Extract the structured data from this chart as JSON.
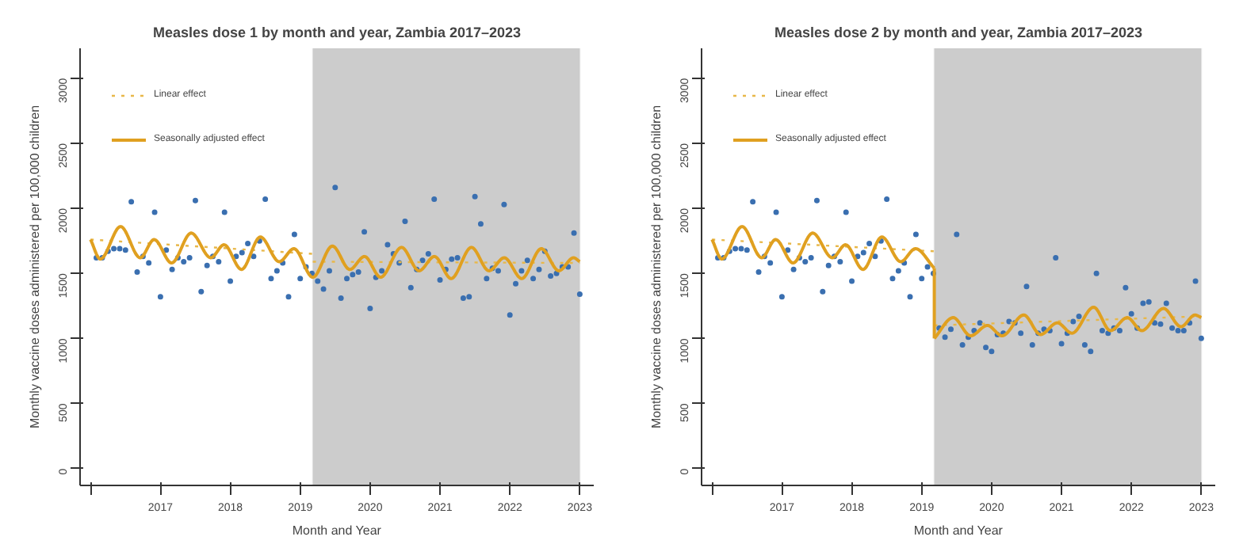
{
  "chart_data": [
    {
      "type": "scatter",
      "title": "Measles dose 1 by month and year, Zambia 2017–2023",
      "xlabel": "Month and Year",
      "ylabel": "Monthly vaccine doses administered per 100,000 children",
      "xlim": [
        2015.85,
        2023.2
      ],
      "ylim": [
        -130,
        3230
      ],
      "xticks": [
        {
          "value": 2016,
          "label": null
        },
        2017,
        2018,
        2019,
        2020,
        2021,
        2022,
        2023
      ],
      "yticks": [
        0,
        500,
        1000,
        1500,
        2000,
        2500,
        3000
      ],
      "grid": false,
      "legend": "top left",
      "bands": [
        {
          "axis": "x",
          "from": 2019.18,
          "to": 2023,
          "color": "#cccccc"
        }
      ],
      "x": [
        2016.083,
        2016.167,
        2016.25,
        2016.333,
        2016.417,
        2016.5,
        2016.583,
        2016.667,
        2016.75,
        2016.833,
        2016.917,
        2017,
        2017.083,
        2017.167,
        2017.25,
        2017.333,
        2017.417,
        2017.5,
        2017.583,
        2017.667,
        2017.75,
        2017.833,
        2017.917,
        2018,
        2018.083,
        2018.167,
        2018.25,
        2018.333,
        2018.417,
        2018.5,
        2018.583,
        2018.667,
        2018.75,
        2018.833,
        2018.917,
        2019,
        2019.083,
        2019.167,
        2019.25,
        2019.333,
        2019.417,
        2019.5,
        2019.583,
        2019.667,
        2019.75,
        2019.833,
        2019.917,
        2020,
        2020.083,
        2020.167,
        2020.25,
        2020.333,
        2020.417,
        2020.5,
        2020.583,
        2020.667,
        2020.75,
        2020.833,
        2020.917,
        2021,
        2021.083,
        2021.167,
        2021.25,
        2021.333,
        2021.417,
        2021.5,
        2021.583,
        2021.667,
        2021.75,
        2021.833,
        2021.917,
        2022,
        2022.083,
        2022.167,
        2022.25,
        2022.333,
        2022.417,
        2022.5,
        2022.583,
        2022.667,
        2022.75,
        2022.833,
        2022.917,
        2023
      ],
      "series": [
        {
          "marker": "circle",
          "color": "#3a6fb0",
          "values": [
            1620,
            1620,
            1670,
            1690,
            1690,
            1680,
            2050,
            1510,
            1630,
            1580,
            1970,
            1320,
            1680,
            1530,
            1620,
            1590,
            1620,
            2060,
            1360,
            1560,
            1630,
            1590,
            1970,
            1440,
            1630,
            1660,
            1730,
            1630,
            1750,
            2070,
            1460,
            1520,
            1580,
            1320,
            1800,
            1460,
            1550,
            1500,
            1440,
            1380,
            1520,
            2160,
            1310,
            1460,
            1490,
            1510,
            1820,
            1230,
            1470,
            1520,
            1720,
            1650,
            1580,
            1900,
            1390,
            1530,
            1600,
            1650,
            2070,
            1450,
            1530,
            1610,
            1620,
            1310,
            1320,
            2090,
            1880,
            1460,
            1540,
            1520,
            2030,
            1180,
            1420,
            1520,
            1600,
            1460,
            1530,
            1670,
            1480,
            1500,
            1550,
            1550,
            1810,
            1340
          ]
        },
        {
          "type": "line",
          "name": "Linear effect",
          "color": "#e8b84a",
          "line_style": "dotted",
          "x": [
            2016,
            2019.18
          ],
          "values": [
            1760,
            1650
          ]
        },
        {
          "type": "line",
          "color": "#e8b84a",
          "line_style": "dotted",
          "x": [
            2019.18,
            2023
          ],
          "values": [
            1590,
            1580
          ]
        },
        {
          "type": "line",
          "name": "Seasonally adjusted effect",
          "color": "#e0a020",
          "line_style": "solid",
          "x": [
            2016,
            2016.14,
            2016.43,
            2016.71,
            2016.91,
            2017.16,
            2017.44,
            2017.72,
            2017.91,
            2018.16,
            2018.43,
            2018.7,
            2018.91,
            2019.18,
            2019.46,
            2019.71,
            2019.92,
            2020.15,
            2020.45,
            2020.7,
            2020.92,
            2021.16,
            2021.45,
            2021.7,
            2021.92,
            2022.17,
            2022.45,
            2022.7,
            2022.91,
            2023
          ],
          "values": [
            1760,
            1610,
            1860,
            1620,
            1760,
            1580,
            1810,
            1620,
            1720,
            1530,
            1780,
            1590,
            1690,
            1470,
            1710,
            1530,
            1630,
            1470,
            1700,
            1520,
            1630,
            1460,
            1700,
            1520,
            1620,
            1460,
            1690,
            1520,
            1620,
            1590
          ]
        }
      ]
    },
    {
      "type": "scatter",
      "title": "Measles dose 2 by month and year, Zambia 2017–2023",
      "xlabel": "Month and Year",
      "ylabel": "Monthly vaccine doses administered per 100,000 children",
      "xlim": [
        2015.85,
        2023.2
      ],
      "ylim": [
        -130,
        3230
      ],
      "xticks": [
        {
          "value": 2016,
          "label": null
        },
        2017,
        2018,
        2019,
        2020,
        2021,
        2022,
        2023
      ],
      "yticks": [
        0,
        500,
        1000,
        1500,
        2000,
        2500,
        3000
      ],
      "grid": false,
      "legend": "top left",
      "bands": [
        {
          "axis": "x",
          "from": 2019.18,
          "to": 2023,
          "color": "#cccccc"
        }
      ],
      "x": [
        2016.083,
        2016.167,
        2016.25,
        2016.333,
        2016.417,
        2016.5,
        2016.583,
        2016.667,
        2016.75,
        2016.833,
        2016.917,
        2017,
        2017.083,
        2017.167,
        2017.25,
        2017.333,
        2017.417,
        2017.5,
        2017.583,
        2017.667,
        2017.75,
        2017.833,
        2017.917,
        2018,
        2018.083,
        2018.167,
        2018.25,
        2018.333,
        2018.417,
        2018.5,
        2018.583,
        2018.667,
        2018.75,
        2018.833,
        2018.917,
        2019,
        2019.083,
        2019.167,
        2019.25,
        2019.333,
        2019.417,
        2019.5,
        2019.583,
        2019.667,
        2019.75,
        2019.833,
        2019.917,
        2020,
        2020.083,
        2020.167,
        2020.25,
        2020.333,
        2020.417,
        2020.5,
        2020.583,
        2020.667,
        2020.75,
        2020.833,
        2020.917,
        2021,
        2021.083,
        2021.167,
        2021.25,
        2021.333,
        2021.417,
        2021.5,
        2021.583,
        2021.667,
        2021.75,
        2021.833,
        2021.917,
        2022,
        2022.083,
        2022.167,
        2022.25,
        2022.333,
        2022.417,
        2022.5,
        2022.583,
        2022.667,
        2022.75,
        2022.833,
        2022.917,
        2023
      ],
      "series": [
        {
          "marker": "circle",
          "color": "#3a6fb0",
          "values": [
            1620,
            1620,
            1670,
            1690,
            1690,
            1680,
            2050,
            1510,
            1630,
            1580,
            1970,
            1320,
            1680,
            1530,
            1620,
            1590,
            1620,
            2060,
            1360,
            1560,
            1630,
            1590,
            1970,
            1440,
            1630,
            1660,
            1730,
            1630,
            1750,
            2070,
            1460,
            1520,
            1580,
            1320,
            1800,
            1460,
            1550,
            1500,
            1080,
            1010,
            1070,
            1800,
            950,
            1010,
            1060,
            1120,
            930,
            900,
            1030,
            1040,
            1130,
            1120,
            1040,
            1400,
            950,
            1040,
            1070,
            1060,
            1620,
            960,
            1040,
            1130,
            1170,
            950,
            900,
            1500,
            1060,
            1040,
            1080,
            1060,
            1390,
            1190,
            1080,
            1270,
            1280,
            1120,
            1110,
            1270,
            1080,
            1060,
            1060,
            1120,
            1440,
            1000
          ]
        },
        {
          "type": "line",
          "name": "Linear effect",
          "color": "#e8b84a",
          "line_style": "dotted",
          "x": [
            2016,
            2019.18
          ],
          "values": [
            1760,
            1670
          ]
        },
        {
          "type": "line",
          "color": "#e8b84a",
          "line_style": "dotted",
          "x": [
            2019.18,
            2023
          ],
          "values": [
            1100,
            1170
          ]
        },
        {
          "type": "line",
          "name": "Seasonally adjusted effect",
          "color": "#e0a020",
          "line_style": "solid",
          "x": [
            2016,
            2016.14,
            2016.43,
            2016.71,
            2016.91,
            2017.16,
            2017.44,
            2017.72,
            2017.91,
            2018.16,
            2018.43,
            2018.7,
            2018.91,
            2019.18,
            2019.18,
            2019.45,
            2019.7,
            2019.94,
            2020.15,
            2020.46,
            2020.7,
            2020.94,
            2021.15,
            2021.46,
            2021.7,
            2021.94,
            2022.15,
            2022.46,
            2022.71,
            2022.91,
            2023
          ],
          "values": [
            1760,
            1610,
            1860,
            1620,
            1760,
            1580,
            1810,
            1620,
            1720,
            1530,
            1780,
            1590,
            1690,
            1540,
            1000,
            1160,
            1020,
            1100,
            1020,
            1180,
            1030,
            1120,
            1040,
            1240,
            1060,
            1160,
            1060,
            1230,
            1090,
            1180,
            1160
          ]
        }
      ]
    }
  ]
}
